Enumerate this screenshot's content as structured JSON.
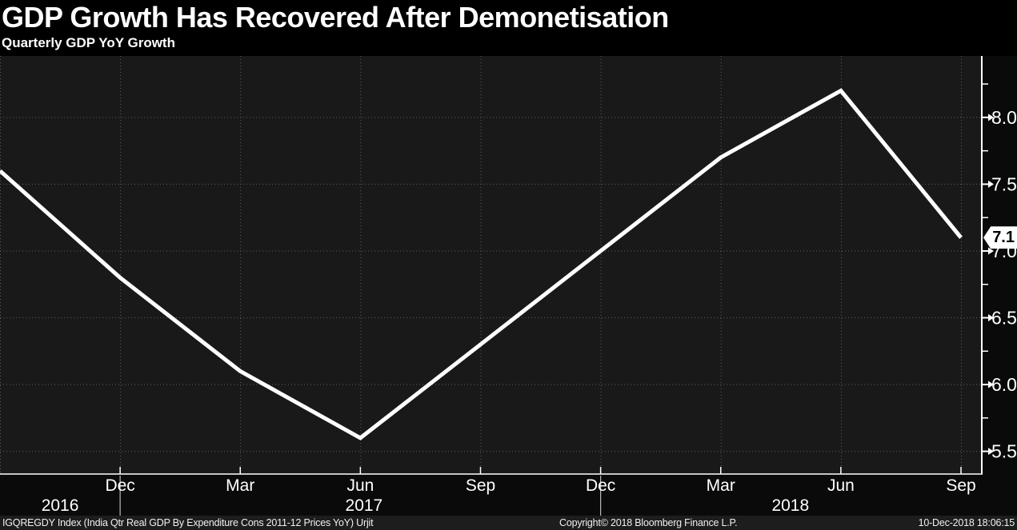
{
  "header": {
    "title": "GDP Growth Has Recovered After Demonetisation",
    "subtitle": "Quarterly GDP YoY Growth"
  },
  "footer": {
    "left": "IGQREGDY Index (India Qtr Real GDP By Expenditure Cons 2011-12 Prices YoY) Urjit",
    "center": "Copyright© 2018 Bloomberg Finance L.P.",
    "right": "10-Dec-2018 18:06:15"
  },
  "colors": {
    "background": "#0a0a0a",
    "header_bg": "#000000",
    "plot_bg": "#191919",
    "line": "#ffffff",
    "grid": "#5f5f5f",
    "axis": "#ffffff",
    "text": "#ffffff",
    "year_divider": "#bbbbbb",
    "badge_bg": "#ffffff",
    "badge_text": "#000000",
    "footer_bg": "#1d1d1d"
  },
  "chart_data": {
    "type": "line",
    "title": "GDP Growth Has Recovered After Demonetisation",
    "subtitle": "Quarterly GDP YoY Growth",
    "x": [
      "Sep 2016",
      "Dec 2016",
      "Mar 2017",
      "Jun 2017",
      "Sep 2017",
      "Dec 2017",
      "Mar 2018",
      "Jun 2018",
      "Sep 2018"
    ],
    "values": [
      7.6,
      6.8,
      6.1,
      5.6,
      6.3,
      7.0,
      7.7,
      8.2,
      7.1
    ],
    "series_name": "India Qtr Real GDP By Expenditure Cons 2011-12 Prices YoY",
    "x_tick_labels": [
      "Dec",
      "Mar",
      "Jun",
      "Sep",
      "Dec",
      "Mar",
      "Jun",
      "Sep"
    ],
    "years": [
      {
        "label": "2016",
        "idx": 0.5
      },
      {
        "label": "2017",
        "idx": 3.03
      },
      {
        "label": "2018",
        "idx": 6.58
      }
    ],
    "year_divider_indices": [
      1,
      5
    ],
    "y_ticks": [
      5.5,
      6.0,
      6.5,
      7.0,
      7.5,
      8.0
    ],
    "y_tick_labels": [
      "5.5",
      "6.0",
      "6.5",
      "7.0",
      "7.5",
      "8.0"
    ],
    "y_minor_ticks": [
      5.75,
      6.25,
      6.75,
      7.25,
      7.75,
      8.25
    ],
    "ylim": [
      5.33,
      8.46
    ],
    "xlabel": "",
    "ylabel": "",
    "grid": "dotted both axes",
    "legend": "none",
    "axis_side": "right",
    "last_value_label": "7.1"
  }
}
